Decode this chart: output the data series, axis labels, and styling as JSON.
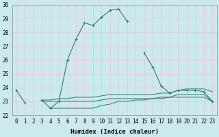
{
  "xlabel": "Humidex (Indice chaleur)",
  "x": [
    0,
    1,
    2,
    3,
    4,
    5,
    6,
    7,
    8,
    9,
    10,
    11,
    12,
    13,
    14,
    15,
    16,
    17,
    18,
    19,
    20,
    21,
    22,
    23
  ],
  "line_main": [
    23.8,
    22.9,
    null,
    23.1,
    22.5,
    23.0,
    26.0,
    27.5,
    28.7,
    28.5,
    29.1,
    29.6,
    29.7,
    28.8,
    null,
    26.5,
    25.5,
    24.1,
    23.6,
    23.8,
    23.8,
    23.8,
    23.7,
    23.0
  ],
  "line_min": [
    null,
    null,
    null,
    null,
    22.5,
    22.5,
    22.5,
    22.5,
    22.5,
    22.5,
    22.7,
    22.8,
    23.0,
    23.0,
    23.1,
    23.1,
    23.2,
    23.2,
    23.3,
    23.3,
    23.3,
    23.3,
    23.3,
    23.0
  ],
  "line_max": [
    null,
    null,
    null,
    23.1,
    23.1,
    23.2,
    23.2,
    23.3,
    23.3,
    23.3,
    23.4,
    23.5,
    23.5,
    23.5,
    23.5,
    23.5,
    23.5,
    23.6,
    23.6,
    23.8,
    23.9,
    23.9,
    23.9,
    23.7
  ],
  "line_avg": [
    null,
    null,
    null,
    23.0,
    23.0,
    23.0,
    23.0,
    23.0,
    23.0,
    23.0,
    23.1,
    23.2,
    23.2,
    23.2,
    23.2,
    23.2,
    23.2,
    23.3,
    23.3,
    23.5,
    23.5,
    23.5,
    23.5,
    23.0
  ],
  "ylim": [
    22,
    30
  ],
  "yticks": [
    22,
    23,
    24,
    25,
    26,
    27,
    28,
    29,
    30
  ],
  "color_main": "#2a7d6e",
  "bg_color": "#cce9ee",
  "grid_color": "#e8c8c8",
  "title_fontsize": 6.5,
  "label_fontsize": 6.5,
  "tick_fontsize": 5.5
}
